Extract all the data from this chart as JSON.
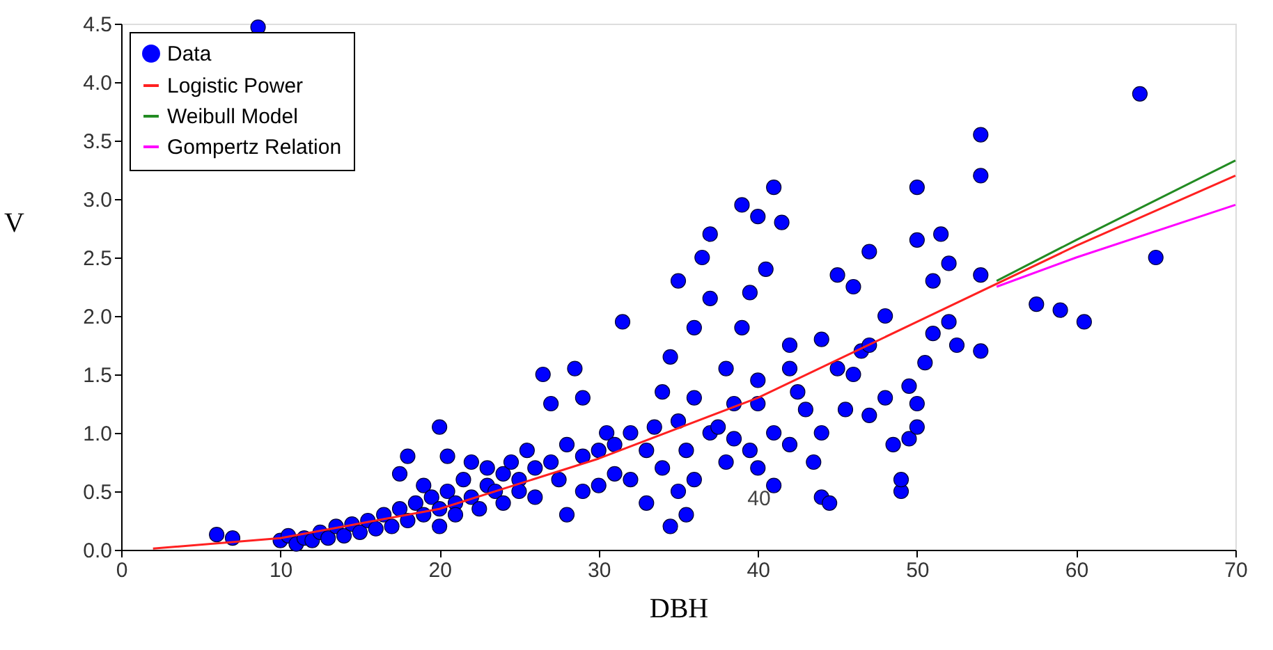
{
  "chart_data": {
    "type": "scatter",
    "xlabel": "DBH",
    "ylabel": "V",
    "xlim": [
      0,
      70
    ],
    "ylim": [
      0,
      4.5
    ],
    "xticks": [
      0,
      10,
      20,
      30,
      40,
      50,
      60,
      70
    ],
    "yticks": [
      {
        "value": 0,
        "label": "0.0"
      },
      0.5,
      {
        "value": 1,
        "label": "1.0"
      },
      1.5,
      {
        "value": 2,
        "label": "2.0"
      },
      2.5,
      {
        "value": 3,
        "label": "3.0"
      },
      3.5,
      {
        "value": 4,
        "label": "4.0"
      },
      4.5
    ],
    "grid": false,
    "legend": "top left",
    "annotations": [
      "40"
    ],
    "series": [
      {
        "name": "Data",
        "marker": "circle",
        "color": "#0000ff",
        "x": [
          6,
          7,
          8.6,
          10,
          10.5,
          11,
          11.5,
          12,
          12.5,
          13,
          13.5,
          14,
          14.5,
          15,
          15.5,
          16,
          16.5,
          17,
          17.5,
          17.5,
          18,
          18,
          18.5,
          19,
          19,
          19.5,
          20,
          20,
          20,
          20.5,
          20.5,
          21,
          21,
          21.5,
          22,
          22,
          22.5,
          23,
          23,
          23.5,
          24,
          24,
          24.5,
          25,
          25,
          25.5,
          26,
          26,
          26.5,
          27,
          27,
          27.5,
          28,
          28,
          28.5,
          29,
          29,
          29,
          30,
          30,
          30.5,
          31,
          31,
          31.5,
          32,
          32,
          33,
          33,
          33.5,
          34,
          34,
          34.5,
          34.5,
          35,
          35,
          35,
          35.5,
          35.5,
          36,
          36,
          36,
          36.5,
          37,
          37,
          37,
          37.5,
          38,
          38,
          38.5,
          38.5,
          39,
          39,
          39.5,
          39.5,
          40,
          40,
          40,
          40,
          40.5,
          41,
          41,
          41,
          41.5,
          42,
          42,
          42.5,
          42,
          43,
          43.5,
          44,
          44,
          44,
          44.5,
          45,
          45,
          45.5,
          46,
          46,
          46.5,
          47,
          47,
          47,
          48,
          48,
          48.5,
          49,
          49,
          49.5,
          49.5,
          50,
          50,
          50,
          50.5,
          50,
          51,
          51.5,
          52,
          51,
          52,
          52.5,
          54,
          54,
          54,
          54,
          57.5,
          59,
          60.5,
          64,
          65
        ],
        "values": [
          0.13,
          0.1,
          4.47,
          0.08,
          0.12,
          0.05,
          0.1,
          0.08,
          0.15,
          0.1,
          0.2,
          0.12,
          0.22,
          0.15,
          0.25,
          0.18,
          0.3,
          0.2,
          0.65,
          0.35,
          0.25,
          0.8,
          0.4,
          0.3,
          0.55,
          0.45,
          0.35,
          0.2,
          1.05,
          0.5,
          0.8,
          0.4,
          0.3,
          0.6,
          0.45,
          0.75,
          0.35,
          0.55,
          0.7,
          0.5,
          0.65,
          0.4,
          0.75,
          0.6,
          0.5,
          0.85,
          0.7,
          0.45,
          1.5,
          0.75,
          1.25,
          0.6,
          0.9,
          0.3,
          1.55,
          0.8,
          0.5,
          1.3,
          0.85,
          0.55,
          1.0,
          0.65,
          0.9,
          1.95,
          0.6,
          1.0,
          0.4,
          0.85,
          1.05,
          0.7,
          1.35,
          1.65,
          0.2,
          1.1,
          0.5,
          2.3,
          0.85,
          0.3,
          1.3,
          1.9,
          0.6,
          2.5,
          2.15,
          1.0,
          2.7,
          1.05,
          1.55,
          0.75,
          1.25,
          0.95,
          2.95,
          1.9,
          0.85,
          2.2,
          2.85,
          1.25,
          1.45,
          0.7,
          2.4,
          3.1,
          1.0,
          0.55,
          2.8,
          1.75,
          1.55,
          1.35,
          0.9,
          1.2,
          0.75,
          1.8,
          0.45,
          1.0,
          0.4,
          1.55,
          2.35,
          1.2,
          2.25,
          1.5,
          1.7,
          2.55,
          1.75,
          1.15,
          1.3,
          2.0,
          0.9,
          0.5,
          0.6,
          0.95,
          1.4,
          3.1,
          2.65,
          1.05,
          1.6,
          1.25,
          2.3,
          2.7,
          2.45,
          1.85,
          1.95,
          1.75,
          3.55,
          3.2,
          2.35,
          1.7,
          2.1,
          2.05,
          1.95,
          3.9,
          2.5
        ]
      },
      {
        "name": "Logistic Power",
        "type": "line",
        "color": "#ff2020",
        "x": [
          2,
          10,
          20,
          30,
          40,
          50,
          60,
          70
        ],
        "values": [
          0.01,
          0.1,
          0.35,
          0.78,
          1.3,
          1.95,
          2.6,
          3.2
        ]
      },
      {
        "name": "Weibull Model",
        "type": "line",
        "color": "#228b22",
        "x": [
          55,
          60,
          70
        ],
        "values": [
          2.3,
          2.65,
          3.33
        ]
      },
      {
        "name": "Gompertz Relation",
        "type": "line",
        "color": "#ff00ff",
        "x": [
          55,
          60,
          70
        ],
        "values": [
          2.25,
          2.5,
          2.95
        ]
      }
    ]
  }
}
